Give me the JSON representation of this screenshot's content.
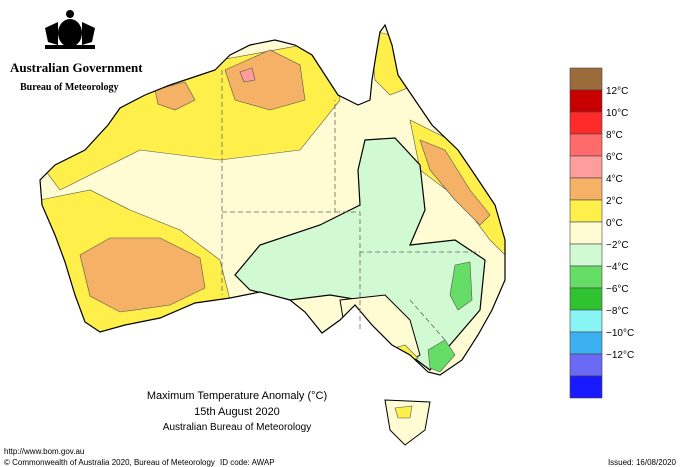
{
  "header": {
    "government": "Australian Government",
    "bureau": "Bureau of Meteorology"
  },
  "title": {
    "line1": "Maximum Temperature Anomaly (°C)",
    "line2": "15th August 2020",
    "line3": "Australian Bureau of Meteorology"
  },
  "legend": {
    "colors": [
      "#9c6b3c",
      "#c80000",
      "#ff2a2a",
      "#ff6a6a",
      "#ff9c9c",
      "#f5b266",
      "#ffef4a",
      "#fffbd2",
      "#d2fad2",
      "#66dd66",
      "#2fc42f",
      "#88f4f4",
      "#3cb0f0",
      "#6a6af5",
      "#1a1aff"
    ],
    "labels": [
      "12°C",
      "10°C",
      "8°C",
      "6°C",
      "4°C",
      "2°C",
      "0°C",
      "−2°C",
      "−4°C",
      "−6°C",
      "−8°C",
      "−10°C",
      "−12°C"
    ]
  },
  "footer": {
    "url": "http://www.bom.gov.au",
    "copyright": "© Commonwealth of Australia 2020, Bureau of Meteorology",
    "id_code": "ID code: AWAP",
    "issued": "Issued: 16/08/2020"
  }
}
